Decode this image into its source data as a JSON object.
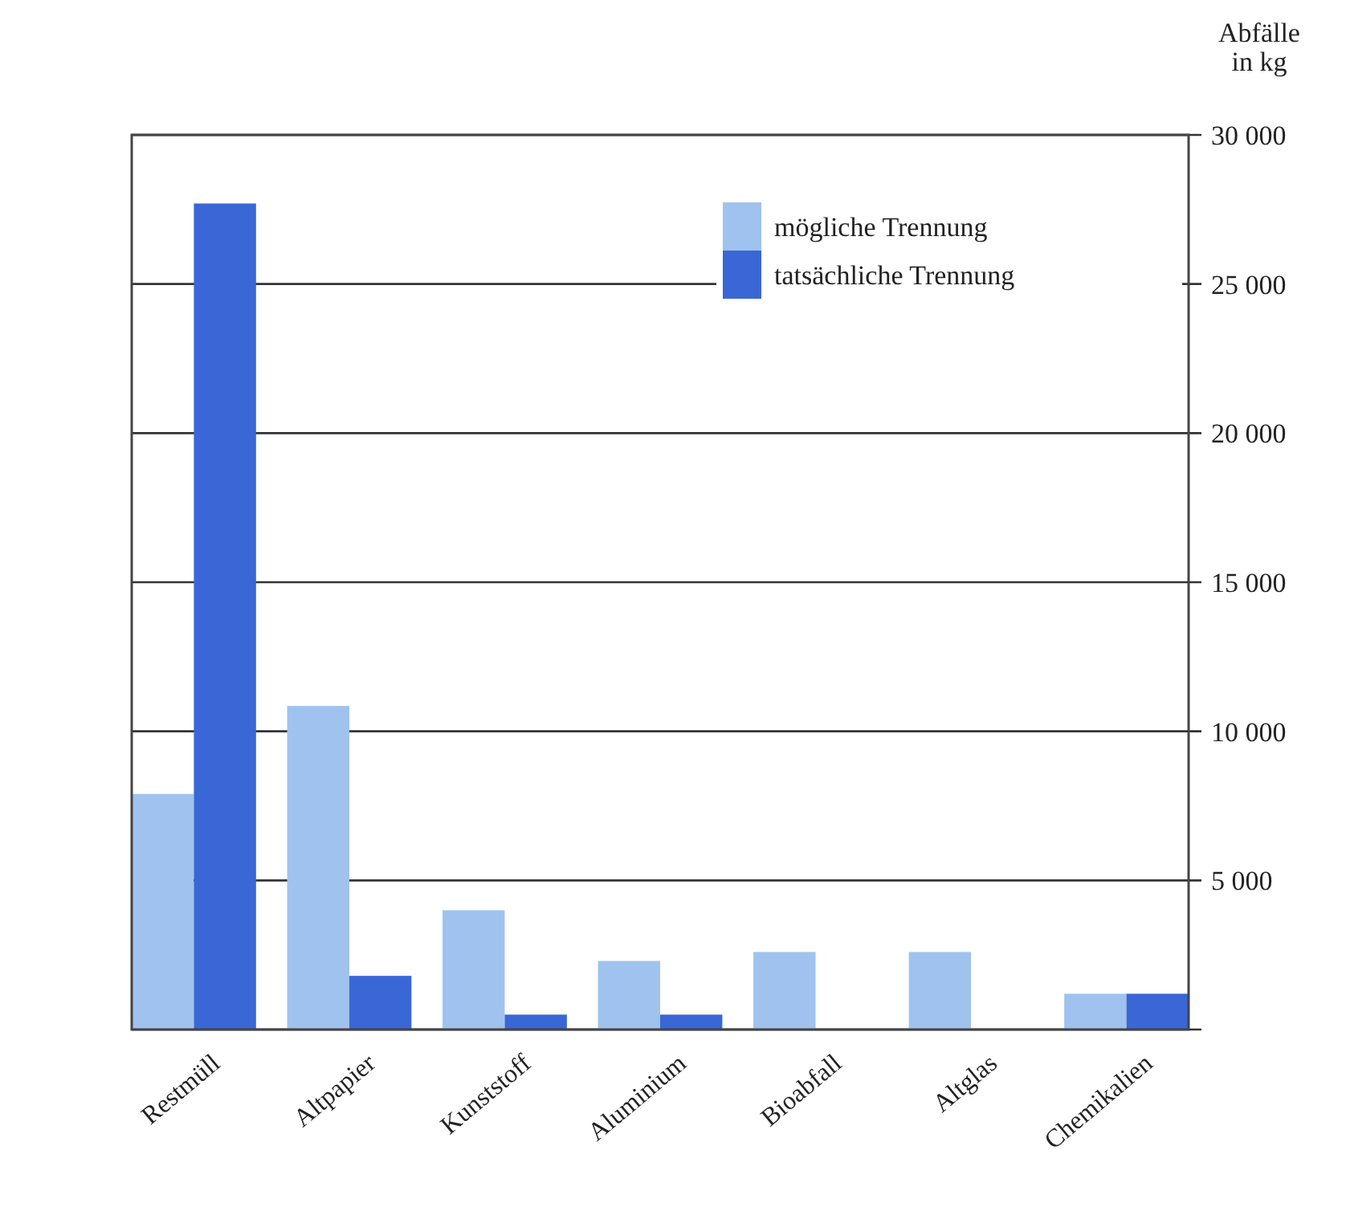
{
  "chart_data": {
    "type": "bar",
    "ylabel": "Abfälle in kg",
    "categories": [
      "Restmüll",
      "Altpapier",
      "Kunststoff",
      "Aluminium",
      "Bioabfall",
      "Altglas",
      "Chemikalien"
    ],
    "series": [
      {
        "name": "mögliche Trennung",
        "color": "#9fc3ee",
        "values": [
          7900,
          10850,
          4000,
          2300,
          2600,
          2600,
          1200
        ]
      },
      {
        "name": "tatsächliche Trennung",
        "color": "#3a67d6",
        "values": [
          27700,
          1800,
          500,
          500,
          0,
          0,
          1200
        ]
      }
    ],
    "ylim": [
      0,
      30000
    ],
    "yticks": [
      {
        "value": 0,
        "label": null
      },
      {
        "value": 5000,
        "label": "5 000"
      },
      {
        "value": 10000,
        "label": "10 000"
      },
      {
        "value": 15000,
        "label": "15 000"
      },
      {
        "value": 20000,
        "label": "20 000"
      },
      {
        "value": 25000,
        "label": "25 000"
      },
      {
        "value": 30000,
        "label": "30 000"
      }
    ],
    "grid": "y",
    "legend": "top right"
  }
}
